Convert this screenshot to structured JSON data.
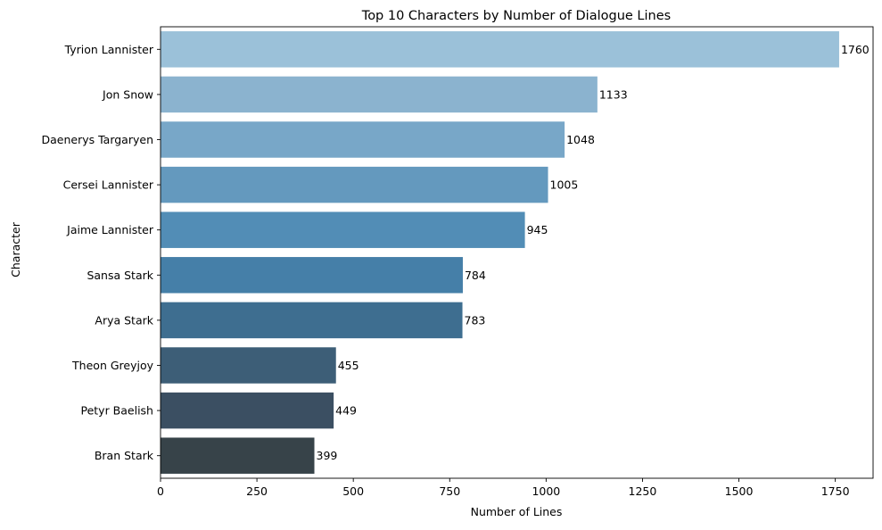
{
  "chart_data": {
    "type": "bar",
    "orientation": "horizontal",
    "title": "Top 10 Characters by Number of Dialogue Lines",
    "xlabel": "Number of Lines",
    "ylabel": "Character",
    "categories": [
      "Tyrion Lannister",
      "Jon Snow",
      "Daenerys Targaryen",
      "Cersei Lannister",
      "Jaime Lannister",
      "Sansa Stark",
      "Arya Stark",
      "Theon Greyjoy",
      "Petyr Baelish",
      "Bran Stark"
    ],
    "values": [
      1760,
      1133,
      1048,
      1005,
      945,
      784,
      783,
      455,
      449,
      399
    ],
    "data_labels": [
      "1760",
      "1133",
      "1048",
      "1005",
      "945",
      "784",
      "783",
      "455",
      "449",
      "399"
    ],
    "xlim": [
      0,
      1848
    ],
    "xticks": [
      0,
      250,
      500,
      750,
      1000,
      1250,
      1500,
      1750
    ],
    "xtick_labels": [
      "0",
      "250",
      "500",
      "750",
      "1000",
      "1250",
      "1500",
      "1750"
    ],
    "grid": false,
    "legend": "none",
    "colors": [
      "#9bc1d9",
      "#8bb3cf",
      "#78a7c8",
      "#6499be",
      "#528db6",
      "#457fa8",
      "#3e6e90",
      "#3d5e77",
      "#3b4f62",
      "#374349"
    ]
  }
}
